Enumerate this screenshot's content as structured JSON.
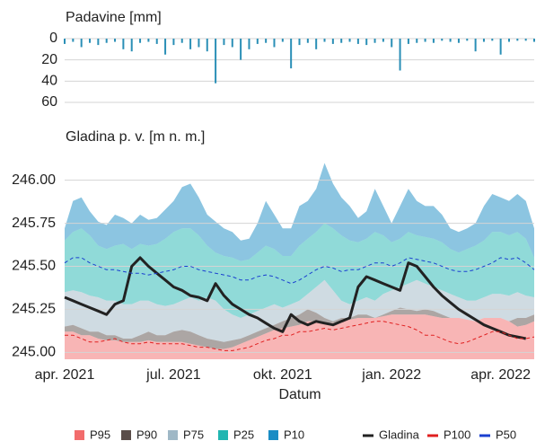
{
  "chart_data": [
    {
      "type": "bar",
      "title": "Padavine [mm]",
      "inverted": true,
      "color": "#2a8fb6",
      "categories": [
        null,
        null,
        null,
        null,
        null,
        null,
        null,
        null,
        null,
        null,
        null,
        null,
        null,
        null,
        null,
        null,
        null,
        null,
        null,
        null,
        null,
        null,
        null,
        null,
        null,
        null,
        null,
        null,
        null,
        null,
        null,
        null,
        null,
        null,
        null,
        null,
        null,
        null,
        null,
        null,
        null,
        null,
        null,
        null,
        null,
        null,
        null,
        null,
        null,
        null,
        null,
        null,
        null,
        null,
        null,
        null,
        null
      ],
      "values": [
        5,
        3,
        8,
        4,
        6,
        4,
        3,
        10,
        12,
        4,
        3,
        5,
        15,
        6,
        4,
        10,
        8,
        12,
        42,
        6,
        8,
        20,
        10,
        5,
        4,
        8,
        3,
        28,
        6,
        4,
        10,
        3,
        5,
        4,
        3,
        5,
        6,
        4,
        3,
        8,
        30,
        5,
        4,
        3,
        4,
        2,
        3,
        4,
        2,
        12,
        3,
        2,
        15,
        3,
        2,
        2,
        3
      ],
      "ylim": [
        0,
        60
      ],
      "yticks": [
        0,
        20,
        40,
        60
      ],
      "grid": true
    },
    {
      "type": "level",
      "title": "Gladina p. v. [m n. m.]",
      "xlabel": "Datum",
      "categories": [
        "apr. 2021",
        null,
        null,
        null,
        null,
        null,
        null,
        null,
        null,
        null,
        null,
        null,
        null,
        "jul. 2021",
        null,
        null,
        null,
        null,
        null,
        null,
        null,
        null,
        null,
        null,
        null,
        null,
        "okt. 2021",
        null,
        null,
        null,
        null,
        null,
        null,
        null,
        null,
        null,
        null,
        null,
        null,
        "jan. 2022",
        null,
        null,
        null,
        null,
        null,
        null,
        null,
        null,
        null,
        null,
        null,
        null,
        "apr. 2022",
        null,
        null,
        null,
        null
      ],
      "ylim": [
        244.96,
        246.16
      ],
      "yticks": [
        {
          "value": 245,
          "label": "245.00"
        },
        {
          "value": 245.25,
          "label": "245.25"
        },
        {
          "value": 245.5,
          "label": "245.50"
        },
        {
          "value": 245.75,
          "label": "245.75"
        },
        {
          "value": 246,
          "label": "246.00"
        }
      ],
      "grid": true,
      "legend": "bottom",
      "series": [
        {
          "name": "P10",
          "style": "area",
          "color": "#1a8cc4",
          "values": [
            245.72,
            245.88,
            245.9,
            245.82,
            245.76,
            245.74,
            245.8,
            245.78,
            245.75,
            245.8,
            245.77,
            245.78,
            245.83,
            245.88,
            245.96,
            245.98,
            245.9,
            245.8,
            245.76,
            245.72,
            245.7,
            245.65,
            245.66,
            245.75,
            245.88,
            245.8,
            245.72,
            245.72,
            245.85,
            245.88,
            245.95,
            246.1,
            245.98,
            245.9,
            245.85,
            245.78,
            245.82,
            245.95,
            245.85,
            245.75,
            245.85,
            245.95,
            245.88,
            245.85,
            245.85,
            245.8,
            245.72,
            245.7,
            245.72,
            245.75,
            245.85,
            245.92,
            245.9,
            245.88,
            245.92,
            245.88,
            245.72
          ]
        },
        {
          "name": "P25",
          "style": "area",
          "color": "#21b6b1",
          "values": [
            245.65,
            245.7,
            245.72,
            245.68,
            245.62,
            245.6,
            245.62,
            245.63,
            245.6,
            245.63,
            245.62,
            245.63,
            245.66,
            245.7,
            245.72,
            245.72,
            245.68,
            245.62,
            245.58,
            245.56,
            245.55,
            245.53,
            245.54,
            245.58,
            245.62,
            245.6,
            245.56,
            245.56,
            245.62,
            245.66,
            245.7,
            245.75,
            245.72,
            245.68,
            245.65,
            245.64,
            245.66,
            245.7,
            245.68,
            245.64,
            245.66,
            245.7,
            245.68,
            245.67,
            245.66,
            245.64,
            245.6,
            245.58,
            245.6,
            245.62,
            245.65,
            245.7,
            245.7,
            245.68,
            245.7,
            245.66,
            245.55
          ]
        },
        {
          "name": "P75",
          "style": "area",
          "color": "#9fb8c6",
          "values": [
            245.35,
            245.36,
            245.35,
            245.33,
            245.32,
            245.3,
            245.3,
            245.28,
            245.28,
            245.3,
            245.3,
            245.28,
            245.27,
            245.28,
            245.3,
            245.32,
            245.3,
            245.32,
            245.3,
            245.25,
            245.22,
            245.2,
            245.22,
            245.24,
            245.26,
            245.28,
            245.26,
            245.28,
            245.3,
            245.34,
            245.38,
            245.42,
            245.36,
            245.3,
            245.28,
            245.3,
            245.32,
            245.3,
            245.34,
            245.36,
            245.38,
            245.4,
            245.42,
            245.4,
            245.38,
            245.36,
            245.34,
            245.32,
            245.3,
            245.3,
            245.32,
            245.34,
            245.34,
            245.33,
            245.35,
            245.33,
            245.32
          ]
        },
        {
          "name": "P90",
          "style": "area",
          "color": "#5a4d49",
          "values": [
            245.15,
            245.16,
            245.14,
            245.12,
            245.12,
            245.1,
            245.1,
            245.08,
            245.08,
            245.1,
            245.12,
            245.1,
            245.1,
            245.12,
            245.13,
            245.12,
            245.1,
            245.08,
            245.07,
            245.06,
            245.07,
            245.08,
            245.1,
            245.12,
            245.14,
            245.16,
            245.18,
            245.2,
            245.22,
            245.25,
            245.23,
            245.2,
            245.18,
            245.2,
            245.2,
            245.22,
            245.22,
            245.2,
            245.22,
            245.24,
            245.26,
            245.25,
            245.24,
            245.25,
            245.24,
            245.22,
            245.2,
            245.2,
            245.18,
            245.16,
            245.15,
            245.14,
            245.15,
            245.18,
            245.2,
            245.2,
            245.22
          ]
        },
        {
          "name": "P95",
          "style": "area",
          "color": "#f26c6c",
          "values": [
            245.12,
            245.12,
            245.1,
            245.1,
            245.08,
            245.07,
            245.07,
            245.06,
            245.06,
            245.06,
            245.07,
            245.06,
            245.06,
            245.06,
            245.06,
            245.05,
            245.04,
            245.03,
            245.02,
            245.02,
            245.03,
            245.05,
            245.07,
            245.09,
            245.11,
            245.13,
            245.14,
            245.15,
            245.16,
            245.18,
            245.18,
            245.17,
            245.17,
            245.18,
            245.19,
            245.2,
            245.2,
            245.2,
            245.21,
            245.22,
            245.22,
            245.22,
            245.22,
            245.22,
            245.21,
            245.2,
            245.2,
            245.2,
            245.19,
            245.18,
            245.2,
            245.2,
            245.2,
            245.18,
            245.15,
            245.16,
            245.18
          ]
        },
        {
          "name": "Gladina",
          "style": "line",
          "color": "#222222",
          "values": [
            245.32,
            245.3,
            245.28,
            245.26,
            245.24,
            245.22,
            245.28,
            245.3,
            245.5,
            245.55,
            245.5,
            245.46,
            245.42,
            245.38,
            245.36,
            245.33,
            245.32,
            245.3,
            245.4,
            245.33,
            245.28,
            245.25,
            245.22,
            245.2,
            245.17,
            245.14,
            245.12,
            245.22,
            245.18,
            245.16,
            245.18,
            245.17,
            245.16,
            245.18,
            245.2,
            245.38,
            245.44,
            245.42,
            245.4,
            245.38,
            245.36,
            245.52,
            245.5,
            245.44,
            245.38,
            245.33,
            245.29,
            245.25,
            245.22,
            245.19,
            245.16,
            245.14,
            245.12,
            245.1,
            245.09,
            245.08,
            null
          ]
        },
        {
          "name": "P100",
          "style": "dashed",
          "color": "#e02020",
          "values": [
            245.1,
            245.1,
            245.08,
            245.06,
            245.06,
            245.07,
            245.08,
            245.06,
            245.05,
            245.05,
            245.06,
            245.05,
            245.05,
            245.05,
            245.05,
            245.04,
            245.03,
            245.03,
            245.02,
            245.01,
            245.01,
            245.02,
            245.03,
            245.05,
            245.07,
            245.08,
            245.1,
            245.1,
            245.12,
            245.12,
            245.13,
            245.14,
            245.13,
            245.14,
            245.15,
            245.16,
            245.17,
            245.18,
            245.18,
            245.17,
            245.16,
            245.15,
            245.13,
            245.1,
            245.1,
            245.08,
            245.06,
            245.05,
            245.06,
            245.08,
            245.1,
            245.12,
            245.12,
            245.1,
            245.08,
            245.08,
            245.09
          ]
        },
        {
          "name": "P50",
          "style": "dashed",
          "color": "#1a3fd0",
          "values": [
            245.52,
            245.55,
            245.55,
            245.52,
            245.5,
            245.48,
            245.48,
            245.47,
            245.46,
            245.46,
            245.45,
            245.46,
            245.47,
            245.48,
            245.5,
            245.5,
            245.48,
            245.47,
            245.46,
            245.45,
            245.44,
            245.42,
            245.42,
            245.44,
            245.45,
            245.44,
            245.42,
            245.4,
            245.42,
            245.45,
            245.48,
            245.5,
            245.49,
            245.47,
            245.48,
            245.48,
            245.5,
            245.52,
            245.52,
            245.5,
            245.52,
            245.55,
            245.54,
            245.53,
            245.52,
            245.5,
            245.48,
            245.47,
            245.47,
            245.48,
            245.5,
            245.52,
            245.55,
            245.54,
            245.55,
            245.52,
            245.48
          ]
        }
      ]
    }
  ]
}
